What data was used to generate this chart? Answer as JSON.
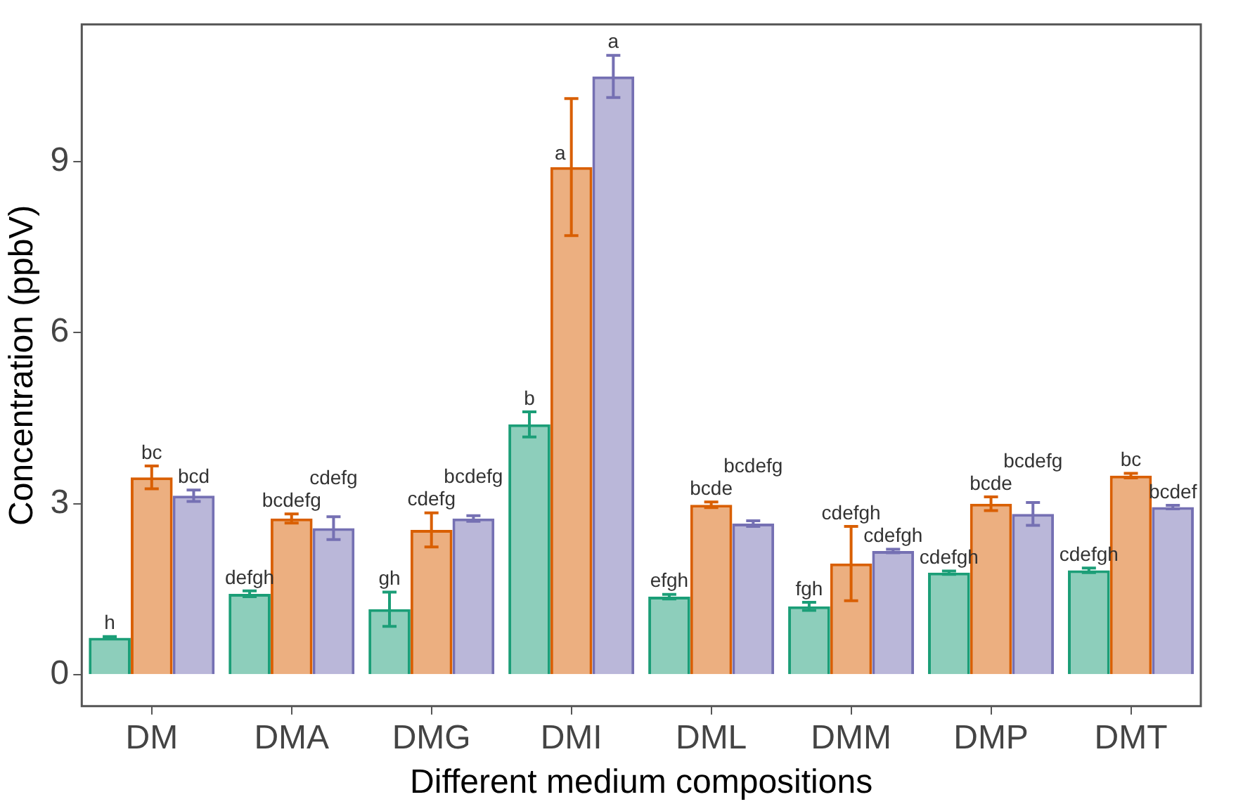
{
  "chart_data": {
    "type": "bar",
    "xlabel": "Different medium compositions",
    "ylabel": "Concentration (ppbV)",
    "categories": [
      "DM",
      "DMA",
      "DMG",
      "DMI",
      "DML",
      "DMM",
      "DMP",
      "DMT"
    ],
    "series": [
      {
        "color": "#1b9e77",
        "values": [
          0.65,
          1.42,
          1.15,
          4.39,
          1.37,
          1.2,
          1.79,
          1.83
        ],
        "errors": [
          0.02,
          0.05,
          0.3,
          0.22,
          0.04,
          0.07,
          0.03,
          0.04
        ],
        "value_labels": [
          "h",
          "defgh",
          "gh",
          "b",
          "efgh",
          "fgh",
          "cdefgh",
          "cdefgh"
        ]
      },
      {
        "color": "#d95f02",
        "values": [
          3.46,
          2.74,
          2.54,
          8.9,
          2.98,
          1.95,
          3.0,
          3.49
        ],
        "errors": [
          0.2,
          0.08,
          0.3,
          1.2,
          0.05,
          0.65,
          0.12,
          0.04
        ],
        "value_labels": [
          "bc",
          "bcdefg",
          "cdefg",
          "a",
          "bcde",
          "cdefgh",
          "bcde",
          "bc"
        ]
      },
      {
        "color": "#7570b3",
        "values": [
          3.14,
          2.57,
          2.74,
          10.49,
          2.65,
          2.17,
          2.82,
          2.94
        ],
        "errors": [
          0.1,
          0.2,
          0.05,
          0.37,
          0.05,
          0.03,
          0.2,
          0.03
        ],
        "value_labels": [
          "bcd",
          "cdefg",
          "bcdefg",
          "a",
          "bcdefg",
          "cdefgh",
          "bcdefg",
          "bcdef"
        ]
      }
    ],
    "ylim": [
      -0.55,
      11.4
    ],
    "yticks": [
      0,
      3,
      6,
      9
    ],
    "grid": false,
    "legend": false
  }
}
